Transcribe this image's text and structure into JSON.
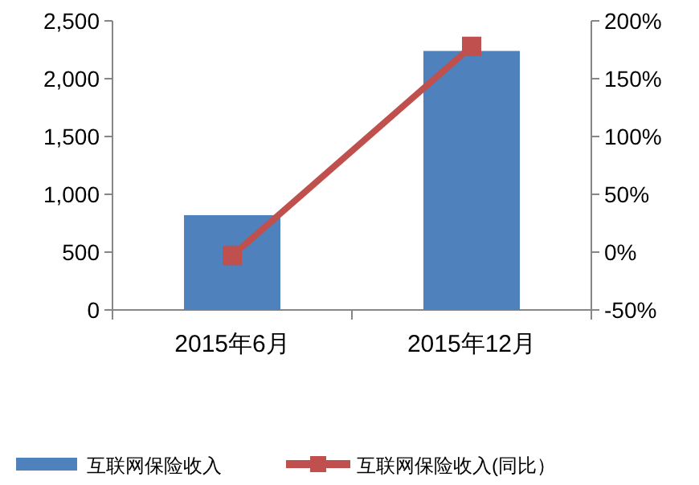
{
  "chart_data": {
    "type": "bar",
    "categories": [
      "2015年6月",
      "2015年12月"
    ],
    "series": [
      {
        "name": "互联网保险收入",
        "color": "#4f81bd",
        "values": [
          820,
          2240
        ]
      },
      {
        "name": "互联网保险收入(同比）",
        "type": "line",
        "axis": "y2",
        "color": "#c0504d",
        "marker": "square",
        "values": [
          -3,
          178
        ]
      }
    ],
    "ylim": [
      0,
      2500
    ],
    "yticks": [
      0,
      500,
      {
        "value": 1000,
        "label": "1,000"
      },
      {
        "value": 1500,
        "label": "1,500"
      },
      {
        "value": 2000,
        "label": "2,000"
      },
      {
        "value": 2500,
        "label": "2,500"
      }
    ],
    "y2lim": [
      -50,
      200
    ],
    "y2ticks": [
      {
        "value": -50,
        "label": "-50%"
      },
      {
        "value": 0,
        "label": "0%"
      },
      {
        "value": 50,
        "label": "50%"
      },
      {
        "value": 100,
        "label": "100%"
      },
      {
        "value": 150,
        "label": "150%"
      },
      {
        "value": 200,
        "label": "200%"
      }
    ],
    "legend": "bottom"
  }
}
